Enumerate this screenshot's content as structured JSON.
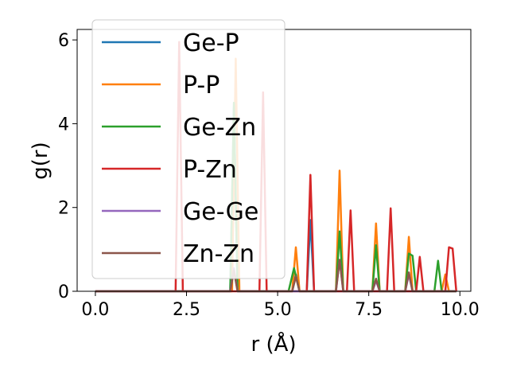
{
  "chart_data": {
    "type": "line",
    "title": "",
    "xlabel": "r (Å)",
    "ylabel": "g(r)",
    "xlim": [
      -0.5,
      10.3
    ],
    "ylim": [
      0,
      6.25
    ],
    "xticks": [
      {
        "value": 0.0,
        "label": "0.0"
      },
      {
        "value": 2.5,
        "label": "2.5"
      },
      {
        "value": 5.0,
        "label": "5.0"
      },
      {
        "value": 7.5,
        "label": "7.5"
      },
      {
        "value": 10.0,
        "label": "10.0"
      }
    ],
    "yticks": [
      {
        "value": 0,
        "label": "0"
      },
      {
        "value": 2,
        "label": "2"
      },
      {
        "value": 4,
        "label": "4"
      },
      {
        "value": 6,
        "label": "6"
      }
    ],
    "grid": false,
    "legend": "upper-left",
    "series": [
      {
        "name": "Ge-P",
        "color": "#1f77b4",
        "points": [
          [
            0,
            0
          ],
          [
            3.7,
            0
          ],
          [
            3.8,
            4.4
          ],
          [
            3.9,
            0
          ],
          [
            5.4,
            0
          ],
          [
            5.5,
            0.4
          ],
          [
            5.6,
            0
          ],
          [
            5.8,
            0
          ],
          [
            5.9,
            1.7
          ],
          [
            6.0,
            0
          ],
          [
            9.9,
            0
          ]
        ]
      },
      {
        "name": "P-P",
        "color": "#ff7f0e",
        "points": [
          [
            0,
            0
          ],
          [
            3.75,
            0
          ],
          [
            3.85,
            5.55
          ],
          [
            3.95,
            0
          ],
          [
            5.4,
            0
          ],
          [
            5.5,
            1.05
          ],
          [
            5.6,
            0
          ],
          [
            6.6,
            0
          ],
          [
            6.7,
            2.88
          ],
          [
            6.8,
            0
          ],
          [
            7.6,
            0
          ],
          [
            7.7,
            1.62
          ],
          [
            7.8,
            0
          ],
          [
            8.5,
            0
          ],
          [
            8.6,
            1.3
          ],
          [
            8.7,
            0
          ],
          [
            9.5,
            0
          ],
          [
            9.6,
            0.4
          ],
          [
            9.7,
            0
          ],
          [
            9.9,
            0
          ]
        ]
      },
      {
        "name": "Ge-Zn",
        "color": "#2ca02c",
        "points": [
          [
            0,
            0
          ],
          [
            3.7,
            0
          ],
          [
            3.8,
            4.5
          ],
          [
            3.9,
            0
          ],
          [
            5.3,
            0
          ],
          [
            5.45,
            0.55
          ],
          [
            5.6,
            0
          ],
          [
            6.6,
            0
          ],
          [
            6.7,
            1.43
          ],
          [
            6.8,
            0
          ],
          [
            7.6,
            0
          ],
          [
            7.7,
            1.1
          ],
          [
            7.8,
            0
          ],
          [
            8.5,
            0
          ],
          [
            8.6,
            0.9
          ],
          [
            8.7,
            0.85
          ],
          [
            8.8,
            0
          ],
          [
            9.3,
            0
          ],
          [
            9.4,
            0.73
          ],
          [
            9.5,
            0
          ],
          [
            9.9,
            0
          ]
        ]
      },
      {
        "name": "P-Zn",
        "color": "#d62728",
        "points": [
          [
            0,
            0
          ],
          [
            2.2,
            0
          ],
          [
            2.3,
            5.95
          ],
          [
            2.4,
            0
          ],
          [
            4.5,
            0
          ],
          [
            4.6,
            4.75
          ],
          [
            4.7,
            0
          ],
          [
            5.8,
            0
          ],
          [
            5.9,
            2.78
          ],
          [
            6.0,
            0
          ],
          [
            6.9,
            0
          ],
          [
            7.0,
            1.93
          ],
          [
            7.1,
            0
          ],
          [
            8.0,
            0
          ],
          [
            8.1,
            1.98
          ],
          [
            8.2,
            0
          ],
          [
            8.8,
            0
          ],
          [
            8.9,
            0.82
          ],
          [
            9.0,
            0
          ],
          [
            9.6,
            0
          ],
          [
            9.7,
            1.05
          ],
          [
            9.8,
            1.02
          ],
          [
            9.9,
            0
          ]
        ]
      },
      {
        "name": "Ge-Ge",
        "color": "#9467bd",
        "points": [
          [
            0,
            0
          ],
          [
            3.7,
            0
          ],
          [
            3.8,
            0.55
          ],
          [
            3.9,
            0
          ],
          [
            6.6,
            0
          ],
          [
            6.7,
            0.75
          ],
          [
            6.8,
            0
          ],
          [
            7.6,
            0
          ],
          [
            7.7,
            0.25
          ],
          [
            7.8,
            0
          ],
          [
            8.5,
            0
          ],
          [
            8.6,
            0.4
          ],
          [
            8.7,
            0
          ],
          [
            9.9,
            0
          ]
        ]
      },
      {
        "name": "Zn-Zn",
        "color": "#8c564b",
        "points": [
          [
            0,
            0
          ],
          [
            3.7,
            0
          ],
          [
            3.8,
            0.5
          ],
          [
            3.9,
            0
          ],
          [
            5.4,
            0
          ],
          [
            5.5,
            0.35
          ],
          [
            5.6,
            0
          ],
          [
            6.6,
            0
          ],
          [
            6.7,
            0.75
          ],
          [
            6.8,
            0
          ],
          [
            7.6,
            0
          ],
          [
            7.7,
            0.3
          ],
          [
            7.8,
            0
          ],
          [
            8.5,
            0
          ],
          [
            8.6,
            0.45
          ],
          [
            8.7,
            0
          ],
          [
            9.9,
            0
          ]
        ]
      }
    ]
  }
}
